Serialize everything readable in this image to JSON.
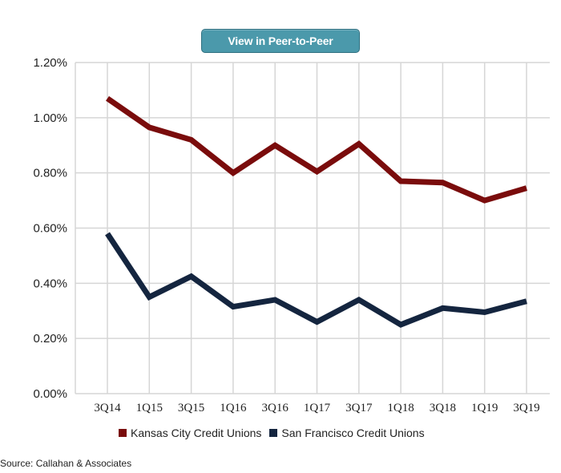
{
  "header": {
    "button_label": "View in Peer-to-Peer"
  },
  "chart_data": {
    "type": "line",
    "title": "",
    "xlabel": "",
    "ylabel": "",
    "categories": [
      "3Q14",
      "1Q15",
      "3Q15",
      "1Q16",
      "3Q16",
      "1Q17",
      "3Q17",
      "1Q18",
      "3Q18",
      "1Q19",
      "3Q19"
    ],
    "ylim": [
      0,
      1.2
    ],
    "yticks": [
      "0.00%",
      "0.20%",
      "0.40%",
      "0.60%",
      "0.80%",
      "1.00%",
      "1.20%"
    ],
    "grid": true,
    "legend_position": "bottom",
    "series": [
      {
        "name": "Kansas City Credit Unions",
        "color": "#7a0c0c",
        "values": [
          1.07,
          0.965,
          0.92,
          0.8,
          0.9,
          0.805,
          0.905,
          0.77,
          0.765,
          0.7,
          0.745
        ]
      },
      {
        "name": "San Francisco Credit Unions",
        "color": "#14253f",
        "values": [
          0.58,
          0.35,
          0.425,
          0.315,
          0.34,
          0.26,
          0.34,
          0.25,
          0.31,
          0.295,
          0.335
        ]
      }
    ]
  },
  "footer": {
    "source": "Source: Callahan & Associates"
  }
}
